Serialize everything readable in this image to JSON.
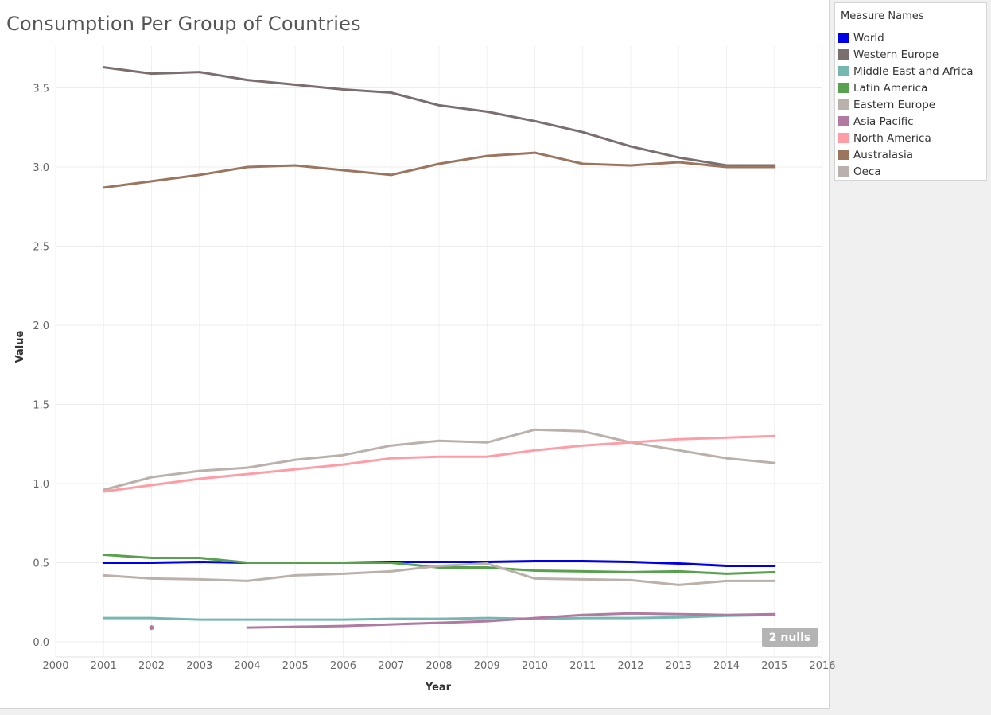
{
  "chart_data": {
    "type": "line",
    "title": "Consumption Per Group of Countries",
    "xlabel": "Year",
    "ylabel": "Value",
    "xlim": [
      2000,
      2016
    ],
    "ylim": [
      0.0,
      3.75
    ],
    "x_ticks": [
      2000,
      2001,
      2002,
      2003,
      2004,
      2005,
      2006,
      2007,
      2008,
      2009,
      2010,
      2011,
      2012,
      2013,
      2014,
      2015,
      2016
    ],
    "y_ticks": [
      0.0,
      0.5,
      1.0,
      1.5,
      2.0,
      2.5,
      3.0,
      3.5
    ],
    "y_tick_labels": [
      "0.0",
      "0.5",
      "1.0",
      "1.5",
      "2.0",
      "2.5",
      "3.0",
      "3.5"
    ],
    "grid": true,
    "legend_title": "Measure Names",
    "legend_position": "right",
    "null_indicator": "2 nulls",
    "x": [
      2001,
      2002,
      2003,
      2004,
      2005,
      2006,
      2007,
      2008,
      2009,
      2010,
      2011,
      2012,
      2013,
      2014,
      2015
    ],
    "series": [
      {
        "name": "World",
        "color": "#0000e6",
        "values": [
          0.5,
          0.5,
          0.505,
          0.5,
          0.5,
          0.5,
          0.505,
          0.505,
          0.505,
          0.51,
          0.51,
          0.505,
          0.495,
          0.48,
          0.48
        ]
      },
      {
        "name": "Western Europe",
        "color": "#7a6e6e",
        "values": [
          3.63,
          3.59,
          3.6,
          3.55,
          3.52,
          3.49,
          3.47,
          3.39,
          3.35,
          3.29,
          3.22,
          3.13,
          3.06,
          3.01,
          3.01
        ]
      },
      {
        "name": "Middle East and Africa",
        "color": "#76b7b2",
        "values": [
          0.15,
          0.15,
          0.14,
          0.14,
          0.14,
          0.14,
          0.145,
          0.145,
          0.15,
          0.145,
          0.15,
          0.15,
          0.155,
          0.165,
          0.17
        ]
      },
      {
        "name": "Latin America",
        "color": "#59a14f",
        "values": [
          0.55,
          0.53,
          0.53,
          0.5,
          0.5,
          0.5,
          0.5,
          0.47,
          0.47,
          0.45,
          0.445,
          0.44,
          0.445,
          0.43,
          0.44
        ]
      },
      {
        "name": "Eastern Europe",
        "color": "#bab0ac",
        "values": [
          0.96,
          1.04,
          1.08,
          1.1,
          1.15,
          1.18,
          1.24,
          1.27,
          1.26,
          1.34,
          1.33,
          1.26,
          1.21,
          1.16,
          1.13
        ]
      },
      {
        "name": "Asia Pacific",
        "color": "#b07aa1",
        "values": [
          null,
          0.09,
          null,
          0.09,
          0.095,
          0.1,
          0.11,
          0.12,
          0.13,
          0.15,
          0.17,
          0.18,
          0.175,
          0.17,
          0.175
        ]
      },
      {
        "name": "North America",
        "color": "#ff9da7",
        "values": [
          0.95,
          0.99,
          1.03,
          1.06,
          1.09,
          1.12,
          1.16,
          1.17,
          1.17,
          1.21,
          1.24,
          1.26,
          1.28,
          1.29,
          1.3
        ]
      },
      {
        "name": "Australasia",
        "color": "#9c755f",
        "values": [
          2.87,
          2.91,
          2.95,
          3.0,
          3.01,
          2.98,
          2.95,
          3.02,
          3.07,
          3.09,
          3.02,
          3.01,
          3.03,
          3.0,
          3.0
        ]
      },
      {
        "name": "Oeca",
        "color": "#bab0ac",
        "values": [
          0.42,
          0.4,
          0.395,
          0.385,
          0.42,
          0.43,
          0.445,
          0.48,
          0.495,
          0.4,
          0.395,
          0.39,
          0.36,
          0.385,
          0.385
        ]
      }
    ]
  }
}
